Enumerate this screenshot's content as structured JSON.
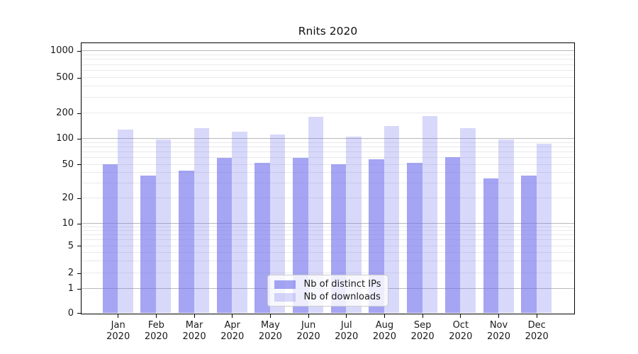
{
  "title": "Rnits 2020",
  "chart_data": {
    "type": "bar",
    "title": "Rnits 2020",
    "xlabel": "",
    "ylabel": "",
    "yscale": "symlog",
    "grid": true,
    "ylim": [
      0,
      1200
    ],
    "yticks": [
      {
        "value": 0,
        "label": "0"
      },
      {
        "value": 1,
        "label": "1"
      },
      {
        "value": 2,
        "label": "2"
      },
      {
        "value": 5,
        "label": "5"
      },
      {
        "value": 10,
        "label": "10"
      },
      {
        "value": 20,
        "label": "20"
      },
      {
        "value": 50,
        "label": "50"
      },
      {
        "value": 100,
        "label": "100"
      },
      {
        "value": 200,
        "label": "200"
      },
      {
        "value": 500,
        "label": "500"
      },
      {
        "value": 1000,
        "label": "1000"
      }
    ],
    "major_grid_values": [
      1,
      10,
      100,
      1000
    ],
    "months": [
      "Jan",
      "Feb",
      "Mar",
      "Apr",
      "May",
      "Jun",
      "Jul",
      "Aug",
      "Sep",
      "Oct",
      "Nov",
      "Dec"
    ],
    "year": "2020",
    "categories": [
      "Jan 2020",
      "Feb 2020",
      "Mar 2020",
      "Apr 2020",
      "May 2020",
      "Jun 2020",
      "Jul 2020",
      "Aug 2020",
      "Sep 2020",
      "Oct 2020",
      "Nov 2020",
      "Dec 2020"
    ],
    "series": [
      {
        "name": "Nb of distinct IPs",
        "slug": "distinct-ips",
        "color": "rgba(110,110,235,0.62)",
        "values": [
          50,
          37,
          42,
          60,
          52,
          59,
          50,
          57,
          52,
          61,
          34,
          37
        ]
      },
      {
        "name": "Nb of downloads",
        "slug": "downloads",
        "color": "rgba(110,110,235,0.27)",
        "values": [
          126,
          97,
          133,
          121,
          112,
          179,
          105,
          139,
          184,
          132,
          97,
          86
        ]
      }
    ],
    "legend_position": "lower center"
  },
  "colors": {
    "bar_base": "#6e6eeb",
    "major_grid": "#b9b9b9",
    "minor_grid": "#e9e9e9",
    "spine": "#000000",
    "background": "#ffffff"
  }
}
